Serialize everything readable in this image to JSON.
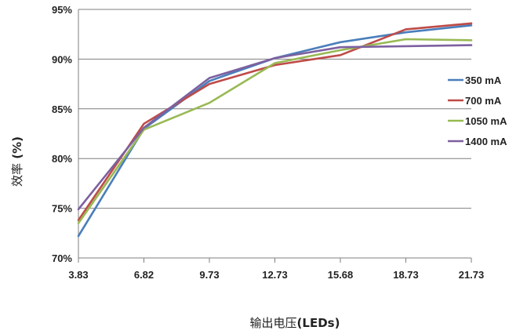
{
  "chart_data": {
    "type": "line",
    "xlabel_main": "输出电压",
    "xlabel_suffix": "(LEDs)",
    "ylabel_main": "效率",
    "ylabel_suffix": " (%)",
    "categories": [
      "3.83",
      "6.82",
      "9.73",
      "12.73",
      "15.68",
      "18.73",
      "21.73"
    ],
    "ylim": [
      70,
      95
    ],
    "yticks": [
      70,
      75,
      80,
      85,
      90,
      95
    ],
    "ytick_labels": [
      "70%",
      "75%",
      "80%",
      "85%",
      "90%",
      "95%"
    ],
    "grid": "horizontal",
    "legend_position": "right",
    "series": [
      {
        "name": "350 mA",
        "color": "#4a7ebb",
        "values": [
          72.2,
          83.0,
          87.8,
          90.1,
          91.7,
          92.7,
          93.4
        ]
      },
      {
        "name": "700 mA",
        "color": "#be4b48",
        "values": [
          73.8,
          83.5,
          87.5,
          89.4,
          90.4,
          93.0,
          93.6
        ]
      },
      {
        "name": "1050 mA",
        "color": "#98b954",
        "values": [
          73.5,
          82.9,
          85.6,
          89.6,
          90.9,
          92.0,
          91.9
        ]
      },
      {
        "name": "1400 mA",
        "color": "#7d60a0",
        "values": [
          74.9,
          83.1,
          88.1,
          90.1,
          91.2,
          91.3,
          91.4
        ]
      }
    ]
  }
}
